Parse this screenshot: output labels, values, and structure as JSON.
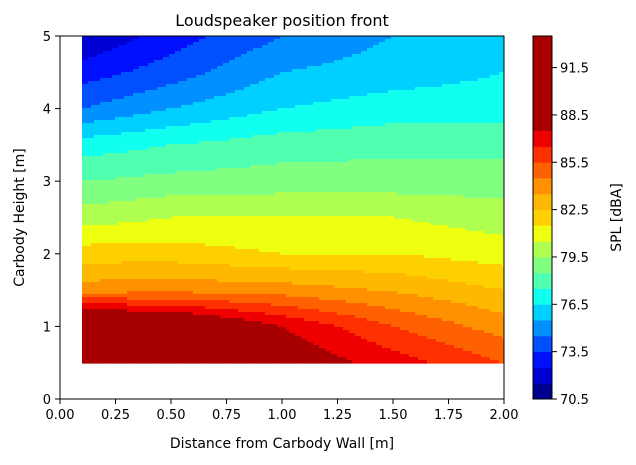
{
  "chart_data": {
    "type": "contour",
    "title": "Loudspeaker position front",
    "xlabel": "Distance from Carbody Wall [m]",
    "ylabel": "Carbody Height [m]",
    "xlim": [
      0,
      2
    ],
    "ylim": [
      0,
      5
    ],
    "xticks": [
      "0.00",
      "0.25",
      "0.50",
      "0.75",
      "1.00",
      "1.25",
      "1.50",
      "1.75",
      "2.00"
    ],
    "yticks": [
      "0",
      "1",
      "2",
      "3",
      "4",
      "5"
    ],
    "x": [
      0.1,
      0.5,
      1.0,
      1.5,
      2.0
    ],
    "y": [
      0.5,
      1.0,
      1.5,
      2.0,
      2.5,
      3.0,
      3.5,
      4.0,
      4.5,
      5.0
    ],
    "z": [
      [
        92.5,
        91.0,
        88.5,
        87.0,
        85.5
      ],
      [
        90.5,
        89.8,
        87.5,
        85.5,
        84.0
      ],
      [
        84.0,
        84.2,
        84.0,
        83.4,
        82.5
      ],
      [
        82.0,
        82.0,
        81.5,
        81.5,
        81.0
      ],
      [
        80.0,
        80.5,
        80.5,
        80.5,
        80.0
      ],
      [
        78.5,
        78.8,
        79.0,
        79.0,
        79.0
      ],
      [
        77.0,
        77.5,
        78.0,
        78.2,
        78.2
      ],
      [
        74.5,
        75.5,
        76.5,
        77.0,
        77.0
      ],
      [
        73.0,
        74.0,
        75.5,
        76.0,
        76.5
      ],
      [
        71.5,
        73.0,
        74.5,
        75.5,
        76.0
      ]
    ],
    "levels": [
      70.5,
      71.5,
      72.5,
      73.5,
      74.5,
      75.5,
      76.5,
      77.5,
      78.5,
      79.5,
      80.5,
      81.5,
      82.5,
      83.5,
      84.5,
      85.5,
      86.5,
      87.5,
      88.5,
      89.5,
      90.5,
      91.5,
      92.5,
      93.5
    ],
    "colorbar": {
      "label": "SPL [dBA]",
      "ticks": [
        "70.5",
        "73.5",
        "76.5",
        "79.5",
        "82.5",
        "85.5",
        "88.5",
        "91.5"
      ],
      "colors": [
        "#00008f",
        "#0000d4",
        "#0010ff",
        "#0050ff",
        "#0090ff",
        "#00d0ff",
        "#10ffef",
        "#50ffaf",
        "#80ff80",
        "#afff50",
        "#efff10",
        "#ffd000",
        "#ffb800",
        "#ff9000",
        "#ff6000",
        "#ff3000",
        "#ef0000",
        "#a80000",
        "#a80000",
        "#a80000",
        "#a80000",
        "#a80000",
        "#a80000"
      ],
      "colormap": "jet"
    }
  }
}
